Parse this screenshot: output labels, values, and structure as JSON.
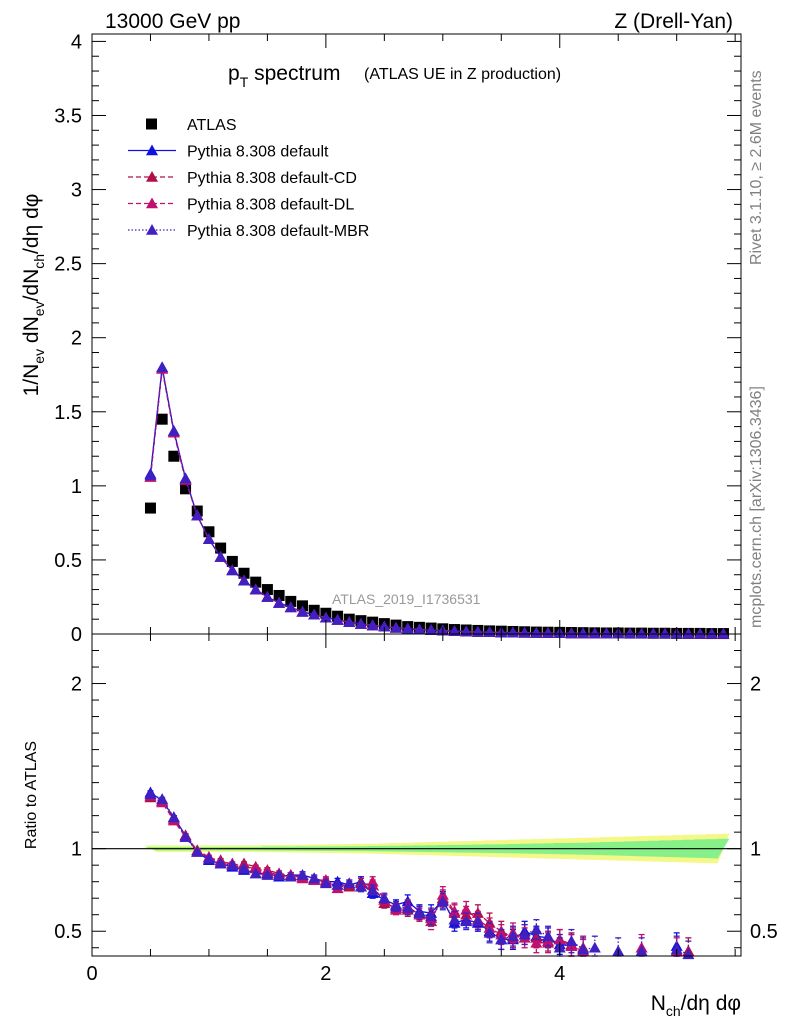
{
  "header": {
    "left": "13000 GeV pp",
    "right": "Z (Drell-Yan)"
  },
  "side_labels": {
    "rivet": "Rivet 3.1.10, ≥ 2.6M events",
    "mcplots": "mcplots.cern.ch [arXiv:1306.3436]"
  },
  "analysis_tag": "ATLAS_2019_I1736531",
  "colors": {
    "atlas": "#000000",
    "default": "#1010e0",
    "cd": "#b0104a",
    "dl": "#c01070",
    "mbr": "#4020c0",
    "band_inner": "#88f088",
    "band_outer": "#f4f888"
  },
  "chart_data": [
    {
      "panel": "main",
      "type": "scatter",
      "title": "p_T spectrum",
      "title_parts": {
        "main": "p",
        "sub": "T",
        "rest": " spectrum"
      },
      "subtitle": "(ATLAS UE in Z production)",
      "ylabel": "1/N_ev dN_ev/dN_ch/dη dφ",
      "ylim": [
        0,
        4.05
      ],
      "xlim": [
        0,
        5.55
      ],
      "y_ticks": [
        0,
        0.5,
        1,
        1.5,
        2,
        2.5,
        3,
        3.5,
        4
      ],
      "y_tick_labels": [
        "0",
        "0.5",
        "1",
        "1.5",
        "2",
        "2.5",
        "3",
        "3.5",
        "4"
      ],
      "legend_position": "top-left",
      "x": [
        0.5,
        0.6,
        0.7,
        0.8,
        0.9,
        1.0,
        1.1,
        1.2,
        1.3,
        1.4,
        1.5,
        1.6,
        1.7,
        1.8,
        1.9,
        2.0,
        2.1,
        2.2,
        2.3,
        2.4,
        2.5,
        2.6,
        2.7,
        2.8,
        2.9,
        3.0,
        3.1,
        3.2,
        3.3,
        3.4,
        3.5,
        3.6,
        3.7,
        3.8,
        3.9,
        4.0,
        4.1,
        4.2,
        4.3,
        4.4,
        4.5,
        4.6,
        4.7,
        4.8,
        4.9,
        5.0,
        5.1,
        5.2,
        5.3,
        5.4
      ],
      "series": [
        {
          "name": "ATLAS",
          "marker": "square",
          "values": [
            0.85,
            1.45,
            1.2,
            0.98,
            0.83,
            0.69,
            0.58,
            0.49,
            0.41,
            0.35,
            0.3,
            0.26,
            0.22,
            0.19,
            0.16,
            0.14,
            0.12,
            0.1,
            0.09,
            0.08,
            0.07,
            0.06,
            0.05,
            0.045,
            0.04,
            0.035,
            0.03,
            0.027,
            0.024,
            0.021,
            0.019,
            0.017,
            0.015,
            0.013,
            0.012,
            0.011,
            0.01,
            0.009,
            0.008,
            0.007,
            0.007,
            0.006,
            0.006,
            0.005,
            0.005,
            0.004,
            0.004,
            0.004,
            0.003,
            0.003
          ]
        },
        {
          "name": "Pythia 8.308 default",
          "marker": "triangle",
          "line": "solid",
          "values": [
            1.08,
            1.8,
            1.37,
            1.05,
            0.8,
            0.64,
            0.52,
            0.43,
            0.36,
            0.3,
            0.25,
            0.21,
            0.18,
            0.15,
            0.13,
            0.11,
            0.095,
            0.08,
            0.068,
            0.058,
            0.05,
            0.042,
            0.036,
            0.03,
            0.026,
            0.022,
            0.019,
            0.016,
            0.014,
            0.012,
            0.01,
            0.009,
            0.008,
            0.007,
            0.006,
            0.005,
            0.004,
            0.004,
            0.003,
            0.003,
            0.003,
            0.002,
            0.002,
            0.002,
            0.002,
            0.002,
            0.001,
            0.001,
            0.001,
            0.001
          ]
        },
        {
          "name": "Pythia 8.308 default-CD",
          "marker": "triangle",
          "line": "dashed",
          "values": [
            1.06,
            1.79,
            1.36,
            1.04,
            0.8,
            0.64,
            0.52,
            0.43,
            0.36,
            0.3,
            0.25,
            0.21,
            0.18,
            0.15,
            0.13,
            0.11,
            0.095,
            0.08,
            0.068,
            0.058,
            0.05,
            0.042,
            0.036,
            0.03,
            0.026,
            0.022,
            0.019,
            0.016,
            0.014,
            0.012,
            0.01,
            0.009,
            0.008,
            0.007,
            0.006,
            0.005,
            0.004,
            0.004,
            0.003,
            0.003,
            0.003,
            0.002,
            0.002,
            0.002,
            0.002,
            0.002,
            0.001,
            0.001,
            0.001,
            0.001
          ]
        },
        {
          "name": "Pythia 8.308 default-DL",
          "marker": "triangle",
          "line": "dashed",
          "values": [
            1.06,
            1.79,
            1.36,
            1.04,
            0.8,
            0.64,
            0.52,
            0.43,
            0.36,
            0.3,
            0.25,
            0.21,
            0.18,
            0.15,
            0.13,
            0.11,
            0.095,
            0.08,
            0.068,
            0.058,
            0.05,
            0.042,
            0.036,
            0.03,
            0.026,
            0.022,
            0.019,
            0.016,
            0.014,
            0.012,
            0.01,
            0.009,
            0.008,
            0.007,
            0.006,
            0.005,
            0.004,
            0.004,
            0.003,
            0.003,
            0.003,
            0.002,
            0.002,
            0.002,
            0.002,
            0.002,
            0.001,
            0.001,
            0.001,
            0.001
          ]
        },
        {
          "name": "Pythia 8.308 default-MBR",
          "marker": "triangle",
          "line": "dotted",
          "values": [
            1.07,
            1.8,
            1.37,
            1.05,
            0.8,
            0.64,
            0.52,
            0.43,
            0.36,
            0.3,
            0.25,
            0.21,
            0.18,
            0.15,
            0.13,
            0.11,
            0.095,
            0.08,
            0.068,
            0.058,
            0.05,
            0.042,
            0.036,
            0.03,
            0.026,
            0.022,
            0.019,
            0.016,
            0.014,
            0.012,
            0.01,
            0.009,
            0.008,
            0.007,
            0.006,
            0.005,
            0.004,
            0.004,
            0.003,
            0.003,
            0.003,
            0.002,
            0.002,
            0.002,
            0.002,
            0.002,
            0.001,
            0.001,
            0.001,
            0.001
          ]
        }
      ]
    },
    {
      "panel": "ratio",
      "type": "scatter",
      "ylabel": "Ratio to ATLAS",
      "xlabel": "N_ch/dη dφ",
      "xlabel_parts": {
        "main": "N",
        "sub": "ch",
        "rest": "/dη dφ"
      },
      "xlim": [
        0,
        5.55
      ],
      "ylim": [
        0.35,
        2.3
      ],
      "x_ticks": [
        0,
        2,
        4
      ],
      "x_tick_labels": [
        "0",
        "2",
        "4"
      ],
      "y_ticks": [
        0.5,
        1,
        2
      ],
      "y_tick_labels": [
        "0.5",
        "1",
        "2"
      ],
      "x": [
        0.5,
        0.6,
        0.7,
        0.8,
        0.9,
        1.0,
        1.1,
        1.2,
        1.3,
        1.4,
        1.5,
        1.6,
        1.7,
        1.8,
        1.9,
        2.0,
        2.1,
        2.2,
        2.3,
        2.4,
        2.5,
        2.6,
        2.7,
        2.8,
        2.9,
        3.0,
        3.1,
        3.2,
        3.3,
        3.4,
        3.5,
        3.6,
        3.7,
        3.8,
        3.9,
        4.0,
        4.1,
        4.2,
        4.3,
        4.4,
        4.5,
        4.6,
        4.7,
        4.8,
        4.9,
        5.0,
        5.1,
        5.2,
        5.3,
        5.4
      ],
      "band_inner_halfwidth": [
        0.01,
        0.01,
        0.01,
        0.01,
        0.01,
        0.01,
        0.01,
        0.01,
        0.01,
        0.01,
        0.012,
        0.012,
        0.012,
        0.013,
        0.013,
        0.014,
        0.014,
        0.015,
        0.015,
        0.016,
        0.017,
        0.018,
        0.019,
        0.02,
        0.021,
        0.022,
        0.023,
        0.024,
        0.025,
        0.026,
        0.027,
        0.028,
        0.03,
        0.031,
        0.032,
        0.034,
        0.035,
        0.036,
        0.038,
        0.04,
        0.042,
        0.044,
        0.046,
        0.048,
        0.05,
        0.052,
        0.054,
        0.056,
        0.058,
        0.06
      ],
      "band_outer_halfwidth": [
        0.02,
        0.02,
        0.02,
        0.02,
        0.02,
        0.02,
        0.02,
        0.02,
        0.02,
        0.02,
        0.022,
        0.022,
        0.023,
        0.024,
        0.025,
        0.026,
        0.027,
        0.028,
        0.029,
        0.03,
        0.032,
        0.034,
        0.036,
        0.038,
        0.04,
        0.042,
        0.044,
        0.046,
        0.048,
        0.05,
        0.052,
        0.054,
        0.056,
        0.058,
        0.06,
        0.062,
        0.064,
        0.066,
        0.068,
        0.07,
        0.072,
        0.074,
        0.076,
        0.078,
        0.08,
        0.082,
        0.084,
        0.086,
        0.088,
        0.09
      ],
      "series": [
        {
          "name": "Pythia 8.308 default",
          "line": "solid",
          "values": [
            1.34,
            1.29,
            1.19,
            1.08,
            0.98,
            0.93,
            0.91,
            0.89,
            0.87,
            0.85,
            0.85,
            0.83,
            0.84,
            0.84,
            0.82,
            0.8,
            0.8,
            0.78,
            0.8,
            0.73,
            0.69,
            0.66,
            0.68,
            0.62,
            0.61,
            0.69,
            0.55,
            0.57,
            0.55,
            0.5,
            0.45,
            0.45,
            0.5,
            0.47,
            0.46,
            0.42,
            0.41,
            null,
            null,
            null,
            null,
            null,
            null,
            null,
            null,
            0.41,
            null,
            null,
            null,
            null
          ],
          "err": [
            0.01,
            0.01,
            0.01,
            0.01,
            0.01,
            0.01,
            0.01,
            0.01,
            0.01,
            0.01,
            0.015,
            0.015,
            0.015,
            0.02,
            0.02,
            0.02,
            0.02,
            0.02,
            0.03,
            0.03,
            0.03,
            0.03,
            0.04,
            0.04,
            0.05,
            0.05,
            0.05,
            0.05,
            0.05,
            0.06,
            0.06,
            0.06,
            0.06,
            0.06,
            0.06,
            0.06,
            0.07,
            null,
            null,
            null,
            null,
            null,
            null,
            null,
            null,
            0.08,
            null,
            null,
            null,
            null
          ]
        },
        {
          "name": "Pythia 8.308 default-CD",
          "line": "dashed",
          "values": [
            1.31,
            1.29,
            1.18,
            1.08,
            0.99,
            0.94,
            0.93,
            0.9,
            0.91,
            0.89,
            0.87,
            0.85,
            0.84,
            0.83,
            0.81,
            0.8,
            0.78,
            0.77,
            0.79,
            0.78,
            0.67,
            0.64,
            0.63,
            0.61,
            0.58,
            0.7,
            0.61,
            0.6,
            0.61,
            0.55,
            0.5,
            0.46,
            0.48,
            0.46,
            0.44,
            0.45,
            0.42,
            0.4,
            null,
            null,
            null,
            null,
            null,
            null,
            null,
            null,
            0.38,
            null,
            null,
            null
          ],
          "err": [
            0.01,
            0.01,
            0.01,
            0.01,
            0.01,
            0.01,
            0.01,
            0.01,
            0.01,
            0.01,
            0.015,
            0.015,
            0.015,
            0.02,
            0.02,
            0.02,
            0.02,
            0.02,
            0.03,
            0.03,
            0.03,
            0.03,
            0.04,
            0.04,
            0.05,
            0.05,
            0.05,
            0.05,
            0.05,
            0.06,
            0.06,
            0.06,
            0.06,
            0.06,
            0.06,
            0.06,
            0.07,
            0.07,
            null,
            null,
            null,
            null,
            null,
            null,
            null,
            null,
            0.08,
            null,
            null,
            null
          ]
        },
        {
          "name": "Pythia 8.308 default-DL",
          "line": "dashed",
          "values": [
            1.32,
            1.28,
            1.17,
            1.07,
            0.99,
            0.95,
            0.92,
            0.91,
            0.89,
            0.88,
            0.86,
            0.84,
            0.84,
            0.82,
            0.81,
            0.81,
            0.76,
            0.79,
            0.77,
            0.8,
            0.69,
            0.63,
            0.65,
            0.6,
            0.56,
            0.72,
            0.62,
            0.63,
            0.57,
            0.52,
            0.48,
            0.49,
            0.46,
            0.43,
            0.43,
            0.45,
            0.41,
            0.38,
            null,
            null,
            null,
            null,
            0.4,
            null,
            null,
            0.38,
            null,
            null,
            null,
            null
          ],
          "err": [
            0.01,
            0.01,
            0.01,
            0.01,
            0.01,
            0.01,
            0.01,
            0.01,
            0.01,
            0.01,
            0.015,
            0.015,
            0.015,
            0.02,
            0.02,
            0.02,
            0.02,
            0.02,
            0.03,
            0.03,
            0.03,
            0.03,
            0.04,
            0.04,
            0.05,
            0.05,
            0.05,
            0.05,
            0.05,
            0.06,
            0.06,
            0.06,
            0.06,
            0.06,
            0.06,
            0.06,
            0.07,
            0.07,
            null,
            null,
            null,
            null,
            0.08,
            null,
            null,
            0.08,
            null,
            null,
            null,
            null
          ]
        },
        {
          "name": "Pythia 8.308 default-MBR",
          "line": "dotted",
          "values": [
            1.33,
            1.3,
            1.19,
            1.07,
            0.98,
            0.94,
            0.91,
            0.9,
            0.88,
            0.85,
            0.84,
            0.84,
            0.83,
            0.84,
            0.82,
            0.79,
            0.78,
            0.79,
            0.77,
            0.75,
            0.7,
            0.65,
            0.64,
            0.61,
            0.59,
            0.68,
            0.57,
            0.56,
            0.56,
            0.49,
            0.45,
            0.47,
            0.48,
            0.51,
            0.47,
            0.4,
            0.44,
            0.39,
            0.4,
            null,
            0.38,
            null,
            0.38,
            null,
            null,
            0.39,
            0.36,
            null,
            null,
            null
          ],
          "err": [
            0.01,
            0.01,
            0.01,
            0.01,
            0.01,
            0.01,
            0.01,
            0.01,
            0.01,
            0.01,
            0.015,
            0.015,
            0.015,
            0.02,
            0.02,
            0.02,
            0.02,
            0.02,
            0.03,
            0.03,
            0.03,
            0.03,
            0.04,
            0.04,
            0.05,
            0.05,
            0.05,
            0.05,
            0.05,
            0.06,
            0.06,
            0.06,
            0.06,
            0.06,
            0.06,
            0.06,
            0.07,
            0.07,
            0.07,
            null,
            0.08,
            null,
            0.08,
            null,
            null,
            0.08,
            0.08,
            null,
            null,
            null
          ]
        }
      ]
    }
  ]
}
